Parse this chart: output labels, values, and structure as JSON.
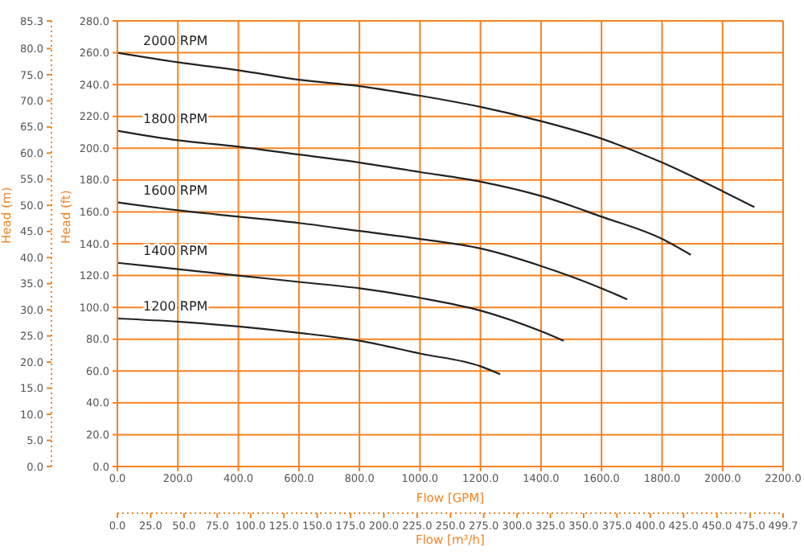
{
  "chart_data": {
    "type": "line",
    "xlabel": "Flow [GPM]",
    "ylabel": "Head (ft)",
    "y2label": "Head (m)",
    "x2label": "Flow [m³/h]",
    "xlim": [
      0,
      2200
    ],
    "xticks": [
      {
        "value": 0,
        "label": "0.0"
      },
      {
        "value": 200,
        "label": "200.0"
      },
      {
        "value": 400,
        "label": "400.0"
      },
      {
        "value": 600,
        "label": "600.0"
      },
      {
        "value": 800,
        "label": "800.0"
      },
      {
        "value": 1000,
        "label": "1000.0"
      },
      {
        "value": 1200,
        "label": "1200.0"
      },
      {
        "value": 1400,
        "label": "1400.0"
      },
      {
        "value": 1600,
        "label": "1600.0"
      },
      {
        "value": 1800,
        "label": "1800.0"
      },
      {
        "value": 2000,
        "label": "2000.0"
      },
      {
        "value": 2200,
        "label": "2200.0"
      }
    ],
    "x2lim": [
      0,
      499.7
    ],
    "x2ticks": [
      {
        "value": 0,
        "label": "0.0"
      },
      {
        "value": 25,
        "label": "25.0"
      },
      {
        "value": 50,
        "label": "50.0"
      },
      {
        "value": 75,
        "label": "75.0"
      },
      {
        "value": 100,
        "label": "100.0"
      },
      {
        "value": 125,
        "label": "125.0"
      },
      {
        "value": 150,
        "label": "150.0"
      },
      {
        "value": 175,
        "label": "175.0"
      },
      {
        "value": 200,
        "label": "200.0"
      },
      {
        "value": 225,
        "label": "225.0"
      },
      {
        "value": 250,
        "label": "250.0"
      },
      {
        "value": 275,
        "label": "275.0"
      },
      {
        "value": 300,
        "label": "300.0"
      },
      {
        "value": 325,
        "label": "325.0"
      },
      {
        "value": 350,
        "label": "350.0"
      },
      {
        "value": 375,
        "label": "375.0"
      },
      {
        "value": 400,
        "label": "400.0"
      },
      {
        "value": 425,
        "label": "425.0"
      },
      {
        "value": 450,
        "label": "450.0"
      },
      {
        "value": 475,
        "label": "475.0"
      },
      499.7
    ],
    "ylim": [
      0,
      280
    ],
    "yticks": [
      {
        "value": 0,
        "label": "0.0"
      },
      {
        "value": 20,
        "label": "20.0"
      },
      {
        "value": 40,
        "label": "40.0"
      },
      {
        "value": 60,
        "label": "60.0"
      },
      {
        "value": 80,
        "label": "80.0"
      },
      {
        "value": 100,
        "label": "100.0"
      },
      {
        "value": 120,
        "label": "120.0"
      },
      {
        "value": 140,
        "label": "140.0"
      },
      {
        "value": 160,
        "label": "160.0"
      },
      {
        "value": 180,
        "label": "180.0"
      },
      {
        "value": 200,
        "label": "200.0"
      },
      {
        "value": 220,
        "label": "220.0"
      },
      {
        "value": 240,
        "label": "240.0"
      },
      {
        "value": 260,
        "label": "260.0"
      },
      {
        "value": 280,
        "label": "280.0"
      }
    ],
    "y2lim": [
      0,
      85.3
    ],
    "y2ticks": [
      {
        "value": 0,
        "label": "0.0"
      },
      {
        "value": 5,
        "label": "5.0"
      },
      {
        "value": 10,
        "label": "10.0"
      },
      {
        "value": 15,
        "label": "15.0"
      },
      {
        "value": 20,
        "label": "20.0"
      },
      {
        "value": 25,
        "label": "25.0"
      },
      {
        "value": 30,
        "label": "30.0"
      },
      {
        "value": 35,
        "label": "35.0"
      },
      {
        "value": 40,
        "label": "40.0"
      },
      {
        "value": 45,
        "label": "45.0"
      },
      {
        "value": 50,
        "label": "50.0"
      },
      {
        "value": 55,
        "label": "55.0"
      },
      {
        "value": 60,
        "label": "60.0"
      },
      {
        "value": 65,
        "label": "65.0"
      },
      {
        "value": 70,
        "label": "70.0"
      },
      {
        "value": 75,
        "label": "75.0"
      },
      {
        "value": 80,
        "label": "80.0"
      },
      85.3
    ],
    "grid": true,
    "legend": false,
    "marker": "none",
    "line_style": "solid",
    "series": [
      {
        "name": "2000 RPM",
        "color": "#222222",
        "x": [
          0,
          200,
          400,
          600,
          800,
          1000,
          1200,
          1400,
          1600,
          1800,
          2000,
          2105
        ],
        "values": [
          260,
          254,
          249,
          243,
          239,
          233,
          226,
          217,
          206,
          191,
          173,
          163
        ]
      },
      {
        "name": "1800 RPM",
        "color": "#222222",
        "x": [
          0,
          200,
          400,
          600,
          800,
          1000,
          1200,
          1400,
          1600,
          1800,
          1895
        ],
        "values": [
          211,
          205,
          201,
          196,
          191,
          185,
          179,
          170,
          157,
          143,
          133
        ]
      },
      {
        "name": "1600 RPM",
        "color": "#222222",
        "x": [
          0,
          200,
          400,
          600,
          800,
          1000,
          1200,
          1400,
          1600,
          1685
        ],
        "values": [
          166,
          161,
          157,
          153,
          148,
          143,
          137,
          126,
          112,
          105
        ]
      },
      {
        "name": "1400 RPM",
        "color": "#222222",
        "x": [
          0,
          200,
          400,
          600,
          800,
          1000,
          1200,
          1400,
          1475
        ],
        "values": [
          128,
          124,
          120,
          116,
          112,
          106,
          98,
          85,
          79
        ]
      },
      {
        "name": "1200 RPM",
        "color": "#222222",
        "x": [
          0,
          200,
          400,
          600,
          800,
          1000,
          1200,
          1265
        ],
        "values": [
          93,
          91,
          88,
          84,
          79,
          71,
          63,
          58
        ]
      }
    ]
  }
}
